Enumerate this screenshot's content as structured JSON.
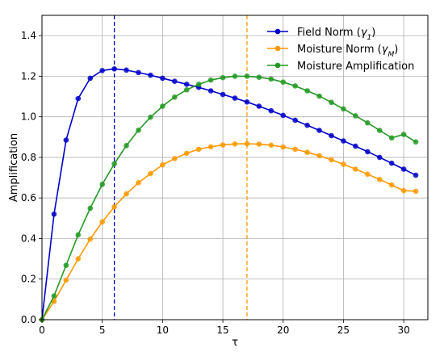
{
  "chart_data": {
    "type": "line",
    "xlabel": "τ",
    "ylabel": "Amplification",
    "xlim": [
      0,
      32
    ],
    "ylim": [
      0,
      1.5
    ],
    "xticks": [
      "0",
      "5",
      "10",
      "15",
      "20",
      "25",
      "30"
    ],
    "yticks": [
      "0.0",
      "0.2",
      "0.4",
      "0.6",
      "0.8",
      "1.0",
      "1.2",
      "1.4"
    ],
    "grid": true,
    "legend_position": "top-right",
    "x": [
      0,
      1,
      2,
      3,
      4,
      5,
      6,
      7,
      8,
      9,
      10,
      11,
      12,
      13,
      14,
      15,
      16,
      17,
      18,
      19,
      20,
      21,
      22,
      23,
      24,
      25,
      26,
      27,
      28,
      29,
      30,
      31
    ],
    "series": [
      {
        "name": "Field Norm (γ1)",
        "color": "#0000cc",
        "values": [
          0.0,
          0.52,
          0.885,
          1.09,
          1.19,
          1.228,
          1.236,
          1.23,
          1.218,
          1.205,
          1.19,
          1.175,
          1.16,
          1.145,
          1.128,
          1.11,
          1.092,
          1.073,
          1.052,
          1.03,
          1.007,
          0.983,
          0.958,
          0.933,
          0.907,
          0.881,
          0.855,
          0.828,
          0.8,
          0.771,
          0.742,
          0.712
        ]
      },
      {
        "name": "Moisture Norm (γM)",
        "color": "#ff9900",
        "values": [
          0.0,
          0.09,
          0.195,
          0.3,
          0.397,
          0.482,
          0.556,
          0.62,
          0.675,
          0.72,
          0.763,
          0.794,
          0.82,
          0.84,
          0.852,
          0.861,
          0.866,
          0.867,
          0.865,
          0.86,
          0.851,
          0.84,
          0.825,
          0.808,
          0.788,
          0.766,
          0.742,
          0.717,
          0.691,
          0.664,
          0.636,
          0.633
        ]
      },
      {
        "name": "Moisture Amplification",
        "color": "#229922",
        "values": [
          0.0,
          0.117,
          0.268,
          0.418,
          0.549,
          0.667,
          0.768,
          0.858,
          0.934,
          0.998,
          1.052,
          1.097,
          1.133,
          1.16,
          1.181,
          1.193,
          1.2,
          1.2,
          1.195,
          1.186,
          1.171,
          1.152,
          1.128,
          1.102,
          1.071,
          1.039,
          1.005,
          0.97,
          0.933,
          0.896,
          0.913,
          0.876
        ]
      }
    ],
    "vlines": [
      {
        "x": 6,
        "color": "#0000cc",
        "style": "dashed"
      },
      {
        "x": 17,
        "color": "#ff9900",
        "style": "dashed"
      }
    ]
  },
  "legend": {
    "items": [
      {
        "label_main": "Field Norm (",
        "label_sym": "γ",
        "label_sub": "1",
        "label_end": ")"
      },
      {
        "label_main": "Moisture Norm (",
        "label_sym": "γ",
        "label_sub": "M",
        "label_end": ")"
      },
      {
        "label_main": "Moisture Amplification",
        "label_sym": "",
        "label_sub": "",
        "label_end": ""
      }
    ]
  }
}
